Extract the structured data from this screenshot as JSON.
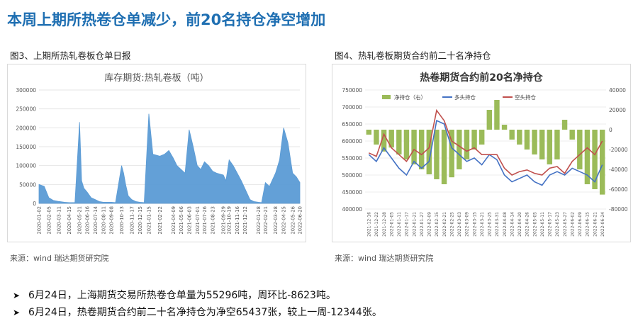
{
  "slide": {
    "title": "本周上期所热卷仓单减少，前20名持仓净空增加"
  },
  "figures": [
    {
      "caption": "图3、上期所热轧卷板仓单日报",
      "source": "来源：wind   瑞达期货研究院"
    },
    {
      "caption": "图4、热轧卷板期货合约前二十名净持仓",
      "source": "来源：wind   瑞达期货研究院"
    }
  ],
  "bullets": [
    "6月24日，上海期货交易所热卷仓单量为55296吨，周环比-8623吨。",
    "6月24日，热卷期货合约前二十名净持仓为净空65437张，较上一周-12344张。"
  ],
  "chart_data": [
    {
      "type": "area",
      "title": "库存期货:热轧卷板（吨）",
      "color": "#5b9bd5",
      "ylim": [
        0,
        300000
      ],
      "yticks": [
        "0",
        "50000",
        "100000",
        "150000",
        "200000",
        "250000",
        "300000"
      ],
      "xticks": [
        "2020-01-02",
        "2020-02-05",
        "2020-03-11",
        "2020-04-15",
        "2020-05-21",
        "2020-06-16",
        "2020-07-14",
        "2020-08-11",
        "2020-09-08",
        "2020-10-13",
        "2020-11-17",
        "2020-12-15",
        "2021-01-15",
        "2021-02-22",
        "2021-04-09",
        "2021-05-06",
        "2021-06-03",
        "2021-07-01",
        "2021-07-26",
        "2021-08-23",
        "2021-09-29",
        "2021-10-19",
        "2021-11-16",
        "2021-12-12",
        "2022-01-28",
        "2022-02-21",
        "2022-03-28",
        "2022-04-25",
        "2022-05-26",
        "2022-06-20"
      ],
      "x": [
        "2020-01-02",
        "2020-01-20",
        "2020-02-05",
        "2020-02-20",
        "2020-03-11",
        "2020-03-30",
        "2020-04-15",
        "2020-05-05",
        "2020-05-21",
        "2020-05-28",
        "2020-06-05",
        "2020-06-16",
        "2020-06-30",
        "2020-07-14",
        "2020-07-28",
        "2020-08-11",
        "2020-08-25",
        "2020-09-08",
        "2020-09-22",
        "2020-10-13",
        "2020-10-20",
        "2020-10-27",
        "2020-11-05",
        "2020-11-17",
        "2020-12-01",
        "2020-12-15",
        "2020-12-30",
        "2021-01-15",
        "2021-01-29",
        "2021-02-22",
        "2021-03-10",
        "2021-03-25",
        "2021-04-09",
        "2021-04-22",
        "2021-05-06",
        "2021-05-20",
        "2021-06-03",
        "2021-06-17",
        "2021-07-01",
        "2021-07-13",
        "2021-07-26",
        "2021-08-09",
        "2021-08-23",
        "2021-09-06",
        "2021-09-29",
        "2021-10-08",
        "2021-10-19",
        "2021-11-02",
        "2021-11-16",
        "2021-11-30",
        "2021-12-12",
        "2021-12-30",
        "2022-01-12",
        "2022-01-28",
        "2022-02-08",
        "2022-02-21",
        "2022-03-07",
        "2022-03-28",
        "2022-04-11",
        "2022-04-25",
        "2022-05-10",
        "2022-05-26",
        "2022-06-08",
        "2022-06-20"
      ],
      "values": [
        50000,
        45000,
        15000,
        8000,
        5000,
        3000,
        2000,
        2000,
        215000,
        60000,
        40000,
        30000,
        15000,
        10000,
        5000,
        3000,
        3000,
        3000,
        2000,
        100000,
        80000,
        50000,
        20000,
        10000,
        5000,
        3000,
        2000,
        237000,
        130000,
        125000,
        130000,
        140000,
        120000,
        100000,
        90000,
        80000,
        195000,
        150000,
        100000,
        90000,
        110000,
        100000,
        85000,
        80000,
        75000,
        60000,
        115000,
        100000,
        80000,
        60000,
        40000,
        10000,
        5000,
        3000,
        2000,
        55000,
        45000,
        80000,
        115000,
        200000,
        160000,
        80000,
        70000,
        55296
      ]
    },
    {
      "type": "combo",
      "title": "热卷期货合约前20名净持仓",
      "ylim_left": [
        400000,
        750000
      ],
      "ylim_right": [
        -80000,
        40000
      ],
      "yticks_left": [
        "400000",
        "450000",
        "500000",
        "550000",
        "600000",
        "650000",
        "700000",
        "750000"
      ],
      "yticks_right": [
        "-80000",
        "-60000",
        "-40000",
        "-20000",
        "0",
        "20000",
        "40000"
      ],
      "xticks": [
        "2021-12-16",
        "2021-12-22",
        "2021-12-28",
        "2022-01-05",
        "2022-01-11",
        "2022-01-17",
        "2022-01-21",
        "2022-01-27",
        "2022-02-09",
        "2022-02-15",
        "2022-02-21",
        "2022-02-25",
        "2022-03-03",
        "2022-03-09",
        "2022-03-15",
        "2022-03-21",
        "2022-03-25",
        "2022-03-31",
        "2022-04-08",
        "2022-04-14",
        "2022-04-20",
        "2022-04-26",
        "2022-05-05",
        "2022-05-11",
        "2022-05-17",
        "2022-05-23",
        "2022-05-27",
        "2022-06-02",
        "2022-06-09",
        "2022-06-15",
        "2022-06-21",
        "2022-06-24"
      ],
      "series": [
        {
          "name": "净持仓（右）",
          "axis": "right",
          "kind": "bar",
          "color": "#9bbb59",
          "values": [
            -5000,
            -15000,
            -22000,
            -18000,
            -25000,
            -30000,
            -35000,
            -40000,
            -45000,
            -50000,
            -55000,
            -48000,
            -40000,
            -30000,
            -20000,
            -15000,
            20000,
            30000,
            5000,
            -10000,
            -15000,
            -20000,
            -25000,
            -30000,
            -35000,
            -30000,
            10000,
            -10000,
            -40000,
            -55000,
            -60000,
            -65437
          ]
        },
        {
          "name": "多头持仓",
          "axis": "left",
          "kind": "line",
          "color": "#4472c4",
          "values": [
            560000,
            540000,
            580000,
            550000,
            520000,
            500000,
            540000,
            520000,
            540000,
            660000,
            650000,
            580000,
            560000,
            540000,
            550000,
            530000,
            560000,
            545000,
            500000,
            480000,
            490000,
            500000,
            480000,
            470000,
            500000,
            510000,
            500000,
            520000,
            510000,
            500000,
            480000,
            530000
          ]
        },
        {
          "name": "空头持仓",
          "axis": "left",
          "kind": "line",
          "color": "#c0504d",
          "values": [
            565000,
            555000,
            620000,
            580000,
            560000,
            540000,
            575000,
            560000,
            580000,
            690000,
            660000,
            600000,
            585000,
            570000,
            580000,
            560000,
            560000,
            560000,
            520000,
            500000,
            510000,
            515000,
            505000,
            500000,
            520000,
            525000,
            505000,
            540000,
            560000,
            580000,
            560000,
            600000
          ]
        }
      ]
    }
  ]
}
